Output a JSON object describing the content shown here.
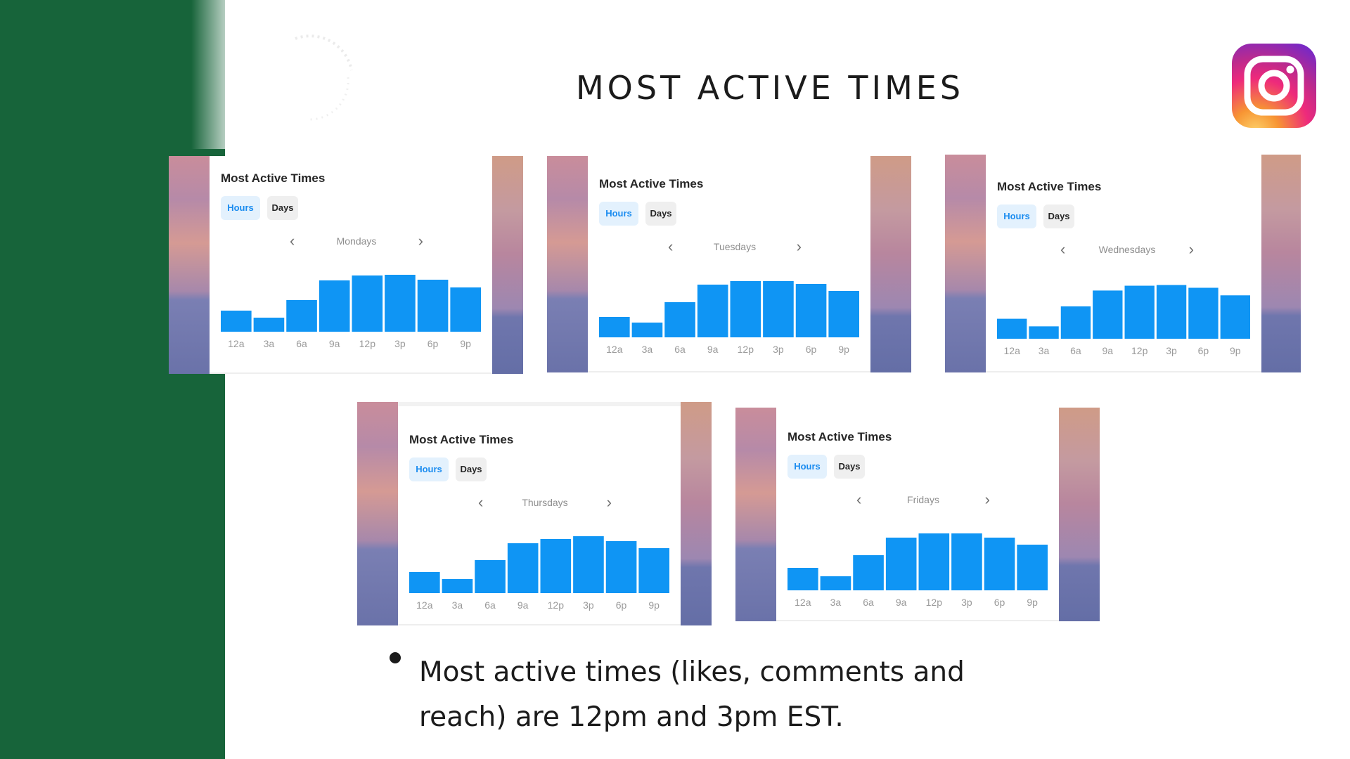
{
  "slide": {
    "title": "MOST ACTIVE TIMES",
    "bullet": "Most active times (likes, comments and reach) are 12pm and 3pm EST.",
    "colors": {
      "sidebar": "#17643a",
      "bar": "#0f95f4",
      "hours_pill_text": "#1a8cf0"
    },
    "logo_icon": "instagram-icon"
  },
  "cards": [
    {
      "title": "Most Active Times",
      "tab_hours": "Hours",
      "tab_days": "Days",
      "prev_icon": "chevron-left-icon",
      "day": "Mondays",
      "next_icon": "chevron-right-icon",
      "chart_data": {
        "type": "bar",
        "categories": [
          "12a",
          "3a",
          "6a",
          "9a",
          "12p",
          "3p",
          "6p",
          "9p"
        ],
        "values": [
          3,
          2,
          4.5,
          7.3,
          8,
          8.1,
          7.4,
          6.3
        ],
        "ylim": [
          0,
          10
        ]
      }
    },
    {
      "title": "Most Active Times",
      "tab_hours": "Hours",
      "tab_days": "Days",
      "prev_icon": "chevron-left-icon",
      "day": "Tuesdays",
      "next_icon": "chevron-right-icon",
      "chart_data": {
        "type": "bar",
        "categories": [
          "12a",
          "3a",
          "6a",
          "9a",
          "12p",
          "3p",
          "6p",
          "9p"
        ],
        "values": [
          2.9,
          2.1,
          5,
          7.5,
          8,
          8,
          7.6,
          6.6
        ],
        "ylim": [
          0,
          10
        ]
      }
    },
    {
      "title": "Most Active Times",
      "tab_hours": "Hours",
      "tab_days": "Days",
      "prev_icon": "chevron-left-icon",
      "day": "Wednesdays",
      "next_icon": "chevron-right-icon",
      "chart_data": {
        "type": "bar",
        "categories": [
          "12a",
          "3a",
          "6a",
          "9a",
          "12p",
          "3p",
          "6p",
          "9p"
        ],
        "values": [
          2.9,
          1.8,
          4.7,
          7,
          7.7,
          7.8,
          7.4,
          6.3
        ],
        "ylim": [
          0,
          10
        ]
      }
    },
    {
      "title": "Most Active Times",
      "tab_hours": "Hours",
      "tab_days": "Days",
      "prev_icon": "chevron-left-icon",
      "day": "Thursdays",
      "next_icon": "chevron-right-icon",
      "chart_data": {
        "type": "bar",
        "categories": [
          "12a",
          "3a",
          "6a",
          "9a",
          "12p",
          "3p",
          "6p",
          "9p"
        ],
        "values": [
          3,
          2,
          4.7,
          7.1,
          7.7,
          8.1,
          7.4,
          6.4
        ],
        "ylim": [
          0,
          10
        ]
      }
    },
    {
      "title": "Most Active Times",
      "tab_hours": "Hours",
      "tab_days": "Days",
      "prev_icon": "chevron-left-icon",
      "day": "Fridays",
      "next_icon": "chevron-right-icon",
      "chart_data": {
        "type": "bar",
        "categories": [
          "12a",
          "3a",
          "6a",
          "9a",
          "12p",
          "3p",
          "6p",
          "9p"
        ],
        "values": [
          3.2,
          2,
          5,
          7.5,
          8.1,
          8.1,
          7.5,
          6.5
        ],
        "ylim": [
          0,
          10
        ]
      }
    }
  ]
}
